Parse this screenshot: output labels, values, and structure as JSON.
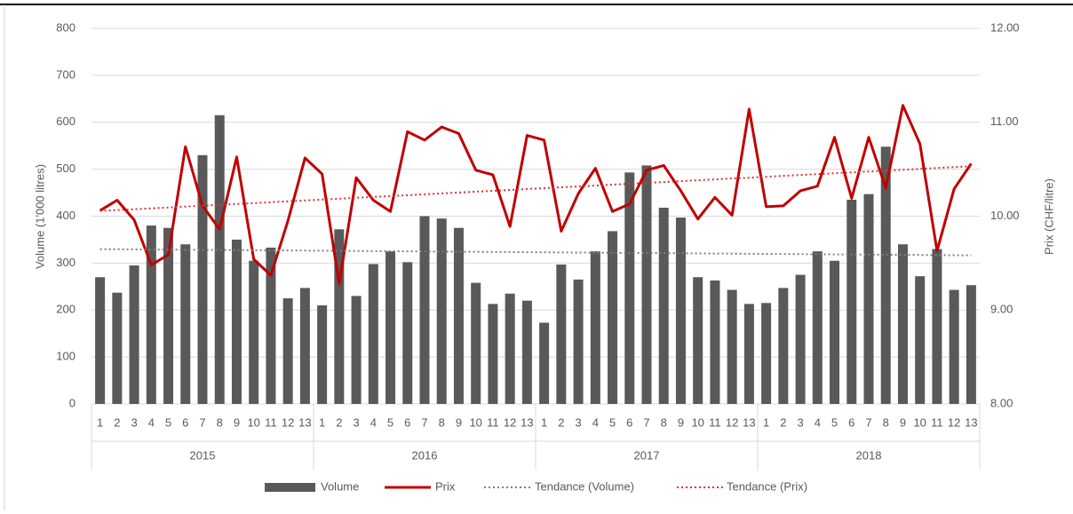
{
  "chart_data": {
    "type": "bar_line",
    "categories": [
      "1",
      "2",
      "3",
      "4",
      "5",
      "6",
      "7",
      "8",
      "9",
      "10",
      "11",
      "12",
      "13",
      "1",
      "2",
      "3",
      "4",
      "5",
      "6",
      "7",
      "8",
      "9",
      "10",
      "11",
      "12",
      "13",
      "1",
      "2",
      "3",
      "4",
      "5",
      "6",
      "7",
      "8",
      "9",
      "10",
      "11",
      "12",
      "13",
      "1",
      "2",
      "3",
      "4",
      "5",
      "6",
      "7",
      "8",
      "9",
      "10",
      "11",
      "12",
      "13"
    ],
    "category_groups": [
      "2015",
      "2016",
      "2017",
      "2018"
    ],
    "y_axis_label": "Volume (1'000 litres)",
    "y2_axis_label": "Prix (CHF/litre)",
    "series": [
      {
        "name": "Volume",
        "type": "bar",
        "color": "#595959",
        "values": [
          270,
          237,
          295,
          380,
          375,
          340,
          530,
          615,
          350,
          305,
          333,
          225,
          247,
          210,
          372,
          230,
          298,
          325,
          302,
          400,
          395,
          375,
          258,
          213,
          235,
          220,
          173,
          297,
          265,
          325,
          368,
          493,
          508,
          418,
          397,
          270,
          263,
          243,
          213,
          215,
          247,
          275,
          325,
          305,
          435,
          447,
          548,
          340,
          272,
          330,
          243,
          253
        ]
      },
      {
        "name": "Prix",
        "type": "line",
        "axis": "y2",
        "color": "#c00000",
        "values": [
          10.06,
          10.17,
          9.96,
          9.48,
          9.59,
          10.74,
          10.11,
          9.86,
          10.63,
          9.54,
          9.37,
          9.95,
          10.62,
          10.45,
          9.28,
          10.41,
          10.17,
          10.05,
          10.9,
          10.81,
          10.95,
          10.88,
          10.49,
          10.44,
          9.89,
          10.86,
          10.81,
          9.84,
          10.24,
          10.51,
          10.05,
          10.13,
          10.49,
          10.54,
          10.27,
          9.97,
          10.2,
          10.01,
          11.14,
          10.1,
          10.11,
          10.27,
          10.32,
          10.84,
          10.19,
          10.84,
          10.3,
          11.18,
          10.77,
          9.63,
          10.29,
          10.56
        ]
      }
    ],
    "trendlines": [
      {
        "name": "Tendance (Volume)",
        "of": 0,
        "color": "#7f7f7f"
      },
      {
        "name": "Tendance (Prix)",
        "of": 1,
        "color": "#e03030"
      }
    ],
    "ylim": [
      0,
      800
    ],
    "yticks": [
      0,
      100,
      200,
      300,
      400,
      500,
      600,
      700,
      800
    ],
    "y2lim": [
      8,
      12
    ],
    "y2ticks": [
      {
        "value": 8,
        "label": "8.00"
      },
      {
        "value": 9,
        "label": "9.00"
      },
      {
        "value": 10,
        "label": "10.00"
      },
      {
        "value": 11,
        "label": "11.00"
      },
      {
        "value": 12,
        "label": "12.00"
      }
    ],
    "grid": true,
    "legend": "bottom"
  }
}
